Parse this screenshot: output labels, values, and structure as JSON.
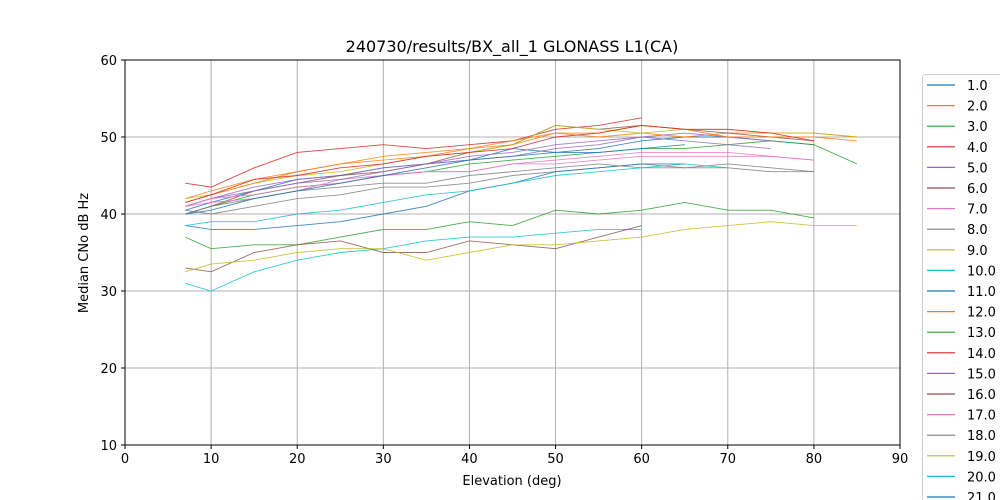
{
  "chart_data": {
    "type": "line",
    "title": "240730/results/BX_all_1 GLONASS L1(CA)",
    "xlabel": "Elevation (deg)",
    "ylabel": "Median CNo dB Hz",
    "xlim": [
      0,
      90
    ],
    "ylim": [
      10,
      60
    ],
    "xticks": [
      0,
      10,
      20,
      30,
      40,
      50,
      60,
      70,
      80,
      90
    ],
    "yticks": [
      10,
      20,
      30,
      40,
      50,
      60
    ],
    "grid": true,
    "legend_placement": "right-outside",
    "x": [
      7,
      10,
      15,
      20,
      25,
      30,
      35,
      40,
      45,
      50,
      55,
      60,
      65,
      70,
      75,
      80,
      85
    ],
    "series": [
      {
        "name": "1.0",
        "color": "#1f77b4",
        "values": [
          40.5,
          41.5,
          43,
          44.5,
          45,
          46,
          46.5,
          47,
          48.5,
          48,
          48.5,
          49.5,
          50,
          50,
          49.5,
          49,
          null
        ]
      },
      {
        "name": "2.0",
        "color": "#ff7f0e",
        "values": [
          42,
          43,
          44.5,
          45.5,
          46.5,
          47,
          47.5,
          48.5,
          49,
          50.5,
          50,
          50.5,
          50,
          50.5,
          50.5,
          50.5,
          50
        ]
      },
      {
        "name": "3.0",
        "color": "#2ca02c",
        "values": [
          40,
          41,
          42.5,
          43.5,
          44,
          45,
          45.5,
          46.5,
          47,
          47.5,
          48,
          48.5,
          48.5,
          49,
          49.5,
          49,
          46.5
        ]
      },
      {
        "name": "4.0",
        "color": "#d62728",
        "values": [
          44,
          43.5,
          46,
          48,
          48.5,
          49,
          48.5,
          49,
          49.5,
          51,
          51.5,
          52.5,
          null,
          null,
          null,
          null,
          null
        ]
      },
      {
        "name": "5.0",
        "color": "#9467bd",
        "values": [
          41,
          42,
          43.5,
          44.5,
          45,
          46,
          46.5,
          47.5,
          48,
          49,
          49.5,
          50,
          50.5,
          50,
          49.5,
          null,
          null
        ]
      },
      {
        "name": "6.0",
        "color": "#8c564b",
        "values": [
          40,
          41,
          43,
          44,
          45,
          45.5,
          46.5,
          48,
          49,
          51.5,
          51,
          51.5,
          51,
          50.5,
          50,
          49.5,
          null
        ]
      },
      {
        "name": "7.0",
        "color": "#e377c2",
        "values": [
          41,
          41.5,
          42,
          43,
          44.5,
          45,
          45.5,
          45.5,
          46.5,
          47,
          47.5,
          48,
          48,
          48,
          47.5,
          47,
          null
        ]
      },
      {
        "name": "8.0",
        "color": "#7f7f7f",
        "values": [
          40.5,
          40,
          41,
          42,
          42.5,
          43.5,
          43.5,
          44,
          45,
          45.5,
          46,
          46.5,
          46,
          46,
          45.5,
          45.5,
          null
        ]
      },
      {
        "name": "9.0",
        "color": "#bcbd22",
        "values": [
          42,
          42.5,
          44,
          45,
          45.5,
          46.5,
          47.5,
          48,
          49,
          51.5,
          51,
          50.5,
          51,
          51,
          50.5,
          50.5,
          50
        ]
      },
      {
        "name": "10.0",
        "color": "#17becf",
        "values": [
          31,
          30,
          32.5,
          34,
          35,
          35.5,
          36.5,
          37,
          37,
          37.5,
          38,
          38,
          null,
          null,
          null,
          null,
          null
        ]
      },
      {
        "name": "11.0",
        "color": "#1f77b4",
        "values": [
          38.5,
          38,
          38,
          38.5,
          39,
          40,
          41,
          43,
          44,
          45.5,
          46,
          46.5,
          46.5,
          null,
          null,
          null,
          null
        ]
      },
      {
        "name": "12.0",
        "color": "#ff7f0e",
        "values": [
          41.5,
          42.5,
          44,
          45.5,
          46.5,
          47.5,
          48,
          48.5,
          49.5,
          50.5,
          50.5,
          51.5,
          51,
          50,
          50,
          50,
          49.5
        ]
      },
      {
        "name": "13.0",
        "color": "#2ca02c",
        "values": [
          37,
          35.5,
          36,
          36,
          37,
          38,
          38,
          39,
          38.5,
          40.5,
          40,
          40.5,
          41.5,
          40.5,
          40.5,
          39.5,
          null
        ]
      },
      {
        "name": "14.0",
        "color": "#d62728",
        "values": [
          41.5,
          42.5,
          44.5,
          45,
          46,
          46.5,
          47.5,
          48,
          48.5,
          50,
          50.5,
          51.5,
          51,
          51,
          50.5,
          49.5,
          null
        ]
      },
      {
        "name": "15.0",
        "color": "#9467bd",
        "values": [
          41,
          42,
          43,
          44,
          44.5,
          45.5,
          46.5,
          47,
          47.5,
          48.5,
          49,
          50,
          49.5,
          49,
          48.5,
          null,
          null
        ]
      },
      {
        "name": "16.0",
        "color": "#8c564b",
        "values": [
          33,
          32.5,
          35,
          36,
          36.5,
          35,
          35,
          36.5,
          36,
          35.5,
          37,
          38.5,
          null,
          null,
          null,
          null,
          null
        ]
      },
      {
        "name": "17.0",
        "color": "#e377c2",
        "values": [
          41,
          42,
          42.5,
          43.5,
          44,
          45,
          45.5,
          45.5,
          46.5,
          46.5,
          47,
          47.5,
          47.5,
          47.5,
          47.5,
          47,
          null
        ]
      },
      {
        "name": "18.0",
        "color": "#7f7f7f",
        "values": [
          40,
          41,
          42,
          43,
          43.5,
          44,
          44,
          45,
          45.5,
          46,
          46.5,
          46,
          46,
          46.5,
          46,
          45.5,
          null
        ]
      },
      {
        "name": "19.0",
        "color": "#bcbd22",
        "values": [
          32.5,
          33.5,
          34,
          35,
          35.5,
          35.5,
          34,
          35,
          36,
          36,
          36.5,
          37,
          38,
          38.5,
          39,
          38.5,
          38.5
        ]
      },
      {
        "name": "20.0",
        "color": "#17becf",
        "values": [
          38.5,
          39,
          39,
          40,
          40.5,
          41.5,
          42.5,
          43,
          44,
          45,
          45.5,
          46,
          46.5,
          46,
          null,
          null,
          null
        ]
      },
      {
        "name": "21.0",
        "color": "#1f77b4",
        "values": [
          40,
          40.5,
          42,
          43,
          44,
          45,
          46,
          47,
          47.5,
          48,
          48,
          48.5,
          49,
          null,
          null,
          null,
          null
        ]
      }
    ]
  }
}
